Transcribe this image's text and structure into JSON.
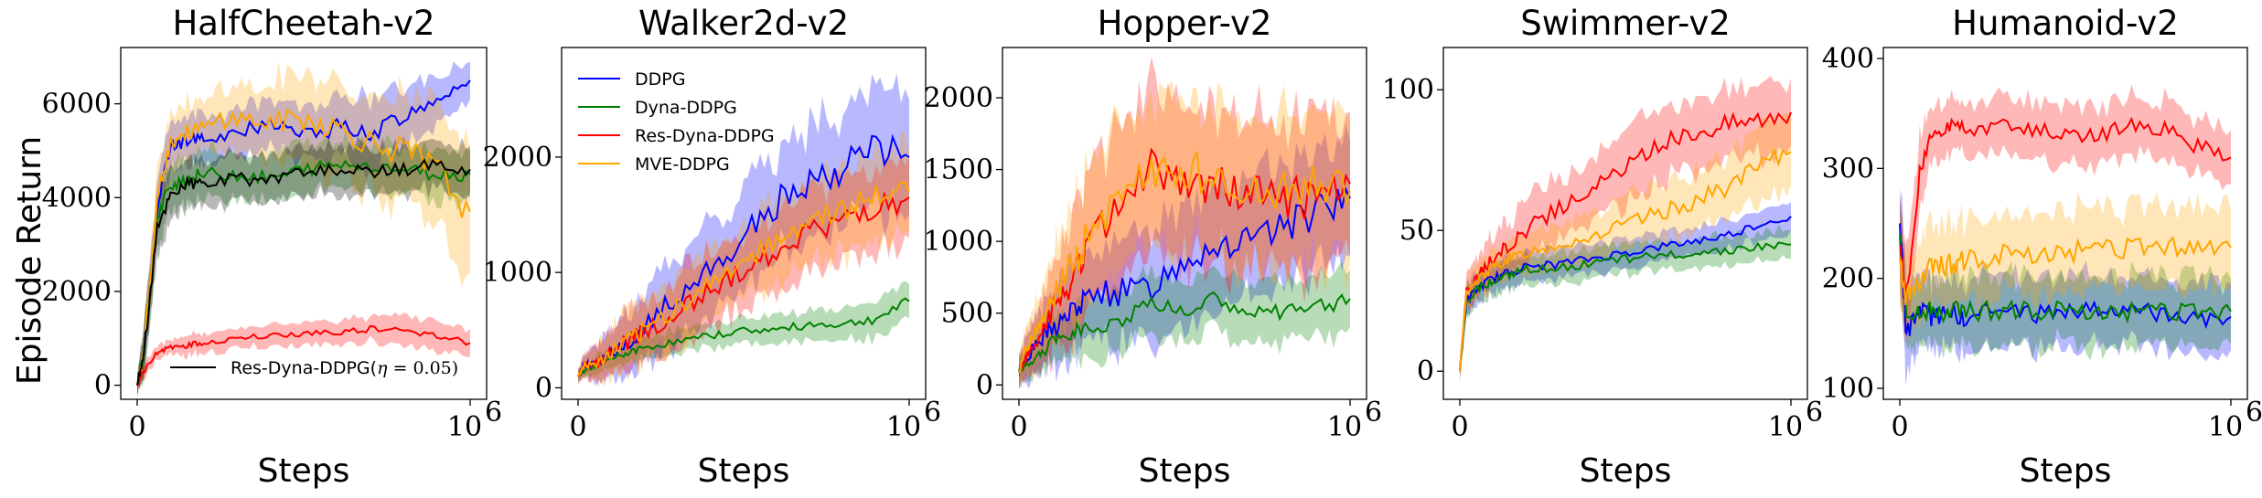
{
  "y_axis_label": "Episode Return",
  "x_axis_label": "Steps",
  "x_tick_labels": [
    "0",
    "10",
    "6"
  ],
  "colors": {
    "DDPG": "#0000ff",
    "Dyna-DDPG": "#008000",
    "Res-Dyna-DDPG": "#ff0000",
    "MVE-DDPG": "#ffa500",
    "Res-Dyna-DDPG-eta": "#000000"
  },
  "legend": {
    "main": [
      "DDPG",
      "Dyna-DDPG",
      "Res-Dyna-DDPG",
      "MVE-DDPG"
    ],
    "eta_label": "Res-Dyna-DDPG(",
    "eta_symbol": "η",
    "eta_value": " = 0.05)"
  },
  "chart_data": [
    {
      "type": "line",
      "title": "HalfCheetah-v2",
      "xlabel": "Steps",
      "ylabel": "Episode Return",
      "xlim": [
        0,
        1000000
      ],
      "ylim": [
        -300,
        7200
      ],
      "yticks": [
        "0",
        "2000",
        "4000",
        "6000"
      ],
      "x": [
        0,
        20000,
        60000,
        100000,
        150000,
        200000,
        300000,
        400000,
        500000,
        600000,
        700000,
        800000,
        900000,
        1000000
      ],
      "series": [
        {
          "name": "DDPG",
          "values": [
            0,
            700,
            3800,
            5100,
            5200,
            5300,
            5400,
            5600,
            5300,
            5500,
            5400,
            5700,
            6100,
            6500
          ],
          "band": [
            200,
            500,
            600,
            500,
            500,
            500,
            500,
            500,
            600,
            600,
            700,
            600,
            500,
            400
          ]
        },
        {
          "name": "Dyna-DDPG",
          "values": [
            0,
            700,
            3500,
            4300,
            4400,
            4500,
            4500,
            4400,
            4600,
            4700,
            4700,
            4600,
            4500,
            4500
          ],
          "band": [
            200,
            500,
            600,
            500,
            500,
            500,
            500,
            500,
            500,
            500,
            500,
            500,
            500,
            500
          ]
        },
        {
          "name": "Res-Dyna-DDPG",
          "values": [
            0,
            300,
            700,
            800,
            850,
            900,
            1000,
            1050,
            1100,
            1150,
            1200,
            1150,
            1100,
            900
          ],
          "band": [
            100,
            150,
            150,
            150,
            200,
            200,
            200,
            200,
            250,
            250,
            250,
            300,
            300,
            300
          ]
        },
        {
          "name": "MVE-DDPG",
          "values": [
            0,
            700,
            4000,
            5200,
            5400,
            5500,
            5700,
            5600,
            5700,
            5500,
            5200,
            5000,
            4600,
            3700
          ],
          "band": [
            200,
            500,
            600,
            600,
            600,
            600,
            700,
            800,
            900,
            900,
            1000,
            1100,
            1200,
            1300
          ]
        },
        {
          "name": "Res-Dyna-DDPG(η = 0.05)",
          "values": [
            0,
            700,
            3300,
            4100,
            4300,
            4300,
            4400,
            4400,
            4500,
            4600,
            4500,
            4600,
            4700,
            4600
          ],
          "band": [
            200,
            500,
            600,
            500,
            500,
            500,
            500,
            500,
            500,
            500,
            500,
            500,
            500,
            500
          ]
        }
      ]
    },
    {
      "type": "line",
      "title": "Walker2d-v2",
      "xlabel": "Steps",
      "xlim": [
        0,
        1000000
      ],
      "ylim": [
        -100,
        2950
      ],
      "yticks": [
        "0",
        "1000",
        "2000"
      ],
      "x": [
        0,
        20000,
        60000,
        100000,
        150000,
        200000,
        300000,
        400000,
        500000,
        600000,
        700000,
        800000,
        900000,
        1000000
      ],
      "series": [
        {
          "name": "DDPG",
          "values": [
            100,
            200,
            200,
            300,
            400,
            500,
            800,
            1000,
            1300,
            1600,
            1800,
            1900,
            2100,
            2000
          ],
          "band": [
            50,
            100,
            150,
            200,
            250,
            300,
            350,
            400,
            400,
            450,
            450,
            500,
            500,
            500
          ]
        },
        {
          "name": "Dyna-DDPG",
          "values": [
            100,
            150,
            200,
            250,
            300,
            350,
            400,
            450,
            500,
            500,
            550,
            550,
            600,
            750
          ],
          "band": [
            50,
            50,
            80,
            80,
            80,
            100,
            100,
            100,
            100,
            120,
            120,
            120,
            150,
            150
          ]
        },
        {
          "name": "Res-Dyna-DDPG",
          "values": [
            100,
            200,
            200,
            300,
            400,
            500,
            650,
            850,
            1000,
            1200,
            1350,
            1450,
            1550,
            1650
          ],
          "band": [
            50,
            100,
            150,
            200,
            250,
            250,
            300,
            300,
            300,
            350,
            350,
            350,
            350,
            350
          ]
        },
        {
          "name": "MVE-DDPG",
          "values": [
            100,
            200,
            200,
            300,
            400,
            500,
            700,
            900,
            1100,
            1300,
            1450,
            1550,
            1650,
            1700
          ],
          "band": [
            50,
            100,
            150,
            200,
            250,
            250,
            300,
            300,
            300,
            350,
            350,
            350,
            350,
            350
          ]
        }
      ]
    },
    {
      "type": "line",
      "title": "Hopper-v2",
      "xlabel": "Steps",
      "xlim": [
        0,
        1000000
      ],
      "ylim": [
        -100,
        2350
      ],
      "yticks": [
        "0",
        "500",
        "1000",
        "1500",
        "2000"
      ],
      "x": [
        0,
        20000,
        60000,
        100000,
        150000,
        200000,
        300000,
        400000,
        500000,
        600000,
        700000,
        800000,
        900000,
        1000000
      ],
      "series": [
        {
          "name": "DDPG",
          "values": [
            100,
            200,
            300,
            400,
            500,
            600,
            650,
            700,
            900,
            1000,
            1000,
            1100,
            1200,
            1300
          ],
          "band": [
            100,
            150,
            200,
            250,
            300,
            300,
            350,
            350,
            400,
            400,
            400,
            400,
            400,
            400
          ]
        },
        {
          "name": "Dyna-DDPG",
          "values": [
            100,
            150,
            200,
            300,
            350,
            400,
            450,
            550,
            500,
            600,
            500,
            500,
            550,
            600
          ],
          "band": [
            80,
            100,
            120,
            150,
            150,
            200,
            200,
            200,
            200,
            200,
            200,
            200,
            200,
            200
          ]
        },
        {
          "name": "Res-Dyna-DDPG",
          "values": [
            100,
            200,
            350,
            500,
            700,
            900,
            1300,
            1500,
            1400,
            1400,
            1300,
            1300,
            1300,
            1400
          ],
          "band": [
            100,
            150,
            200,
            300,
            400,
            450,
            500,
            500,
            500,
            500,
            500,
            500,
            500,
            500
          ]
        },
        {
          "name": "MVE-DDPG",
          "values": [
            100,
            250,
            400,
            600,
            800,
            1000,
            1300,
            1450,
            1500,
            1450,
            1400,
            1350,
            1400,
            1350
          ],
          "band": [
            100,
            150,
            200,
            300,
            400,
            450,
            500,
            500,
            500,
            500,
            500,
            500,
            500,
            500
          ]
        }
      ]
    },
    {
      "type": "line",
      "title": "Swimmer-v2",
      "xlabel": "Steps",
      "xlim": [
        0,
        1000000
      ],
      "ylim": [
        -10,
        115
      ],
      "yticks": [
        "0",
        "50",
        "100"
      ],
      "x": [
        0,
        20000,
        60000,
        100000,
        150000,
        200000,
        300000,
        400000,
        500000,
        600000,
        700000,
        800000,
        900000,
        1000000
      ],
      "series": [
        {
          "name": "DDPG",
          "values": [
            0,
            25,
            30,
            33,
            35,
            37,
            38,
            40,
            42,
            44,
            46,
            48,
            52,
            55
          ],
          "band": [
            3,
            5,
            5,
            5,
            5,
            5,
            5,
            5,
            5,
            5,
            5,
            5,
            5,
            5
          ]
        },
        {
          "name": "Dyna-DDPG",
          "values": [
            0,
            25,
            30,
            32,
            34,
            36,
            37,
            38,
            40,
            41,
            42,
            43,
            44,
            45
          ],
          "band": [
            3,
            5,
            5,
            5,
            5,
            5,
            5,
            5,
            5,
            5,
            5,
            5,
            5,
            5
          ]
        },
        {
          "name": "Res-Dyna-DDPG",
          "values": [
            0,
            28,
            35,
            40,
            45,
            50,
            58,
            65,
            72,
            80,
            85,
            88,
            90,
            92
          ],
          "band": [
            3,
            5,
            8,
            8,
            8,
            10,
            10,
            10,
            12,
            12,
            12,
            12,
            12,
            12
          ]
        },
        {
          "name": "MVE-DDPG",
          "values": [
            0,
            28,
            33,
            37,
            40,
            42,
            45,
            48,
            52,
            56,
            60,
            65,
            72,
            78
          ],
          "band": [
            3,
            5,
            6,
            6,
            6,
            7,
            8,
            8,
            9,
            10,
            10,
            11,
            12,
            12
          ]
        }
      ]
    },
    {
      "type": "line",
      "title": "Humanoid-v2",
      "xlabel": "Steps",
      "xlim": [
        0,
        1000000
      ],
      "ylim": [
        90,
        410
      ],
      "yticks": [
        "100",
        "200",
        "300",
        "400"
      ],
      "x": [
        0,
        20000,
        60000,
        100000,
        150000,
        200000,
        300000,
        400000,
        500000,
        600000,
        700000,
        800000,
        900000,
        1000000
      ],
      "series": [
        {
          "name": "DDPG",
          "values": [
            250,
            150,
            170,
            165,
            170,
            165,
            170,
            168,
            170,
            172,
            168,
            170,
            165,
            165
          ],
          "band": [
            40,
            40,
            30,
            30,
            30,
            30,
            30,
            30,
            30,
            30,
            30,
            30,
            30,
            30
          ]
        },
        {
          "name": "Dyna-DDPG",
          "values": [
            240,
            170,
            170,
            170,
            170,
            170,
            170,
            170,
            170,
            170,
            170,
            170,
            170,
            170
          ],
          "band": [
            40,
            30,
            30,
            30,
            30,
            30,
            30,
            30,
            30,
            30,
            30,
            30,
            30,
            30
          ]
        },
        {
          "name": "Res-Dyna-DDPG",
          "values": [
            230,
            180,
            300,
            330,
            340,
            335,
            340,
            335,
            330,
            330,
            340,
            335,
            320,
            310
          ],
          "band": [
            40,
            40,
            30,
            25,
            25,
            25,
            25,
            25,
            25,
            25,
            25,
            25,
            25,
            25
          ]
        },
        {
          "name": "MVE-DDPG",
          "values": [
            220,
            180,
            200,
            210,
            212,
            215,
            220,
            222,
            225,
            226,
            228,
            230,
            230,
            228
          ],
          "band": [
            40,
            40,
            35,
            35,
            35,
            35,
            35,
            35,
            35,
            35,
            35,
            35,
            35,
            35
          ]
        }
      ]
    }
  ]
}
